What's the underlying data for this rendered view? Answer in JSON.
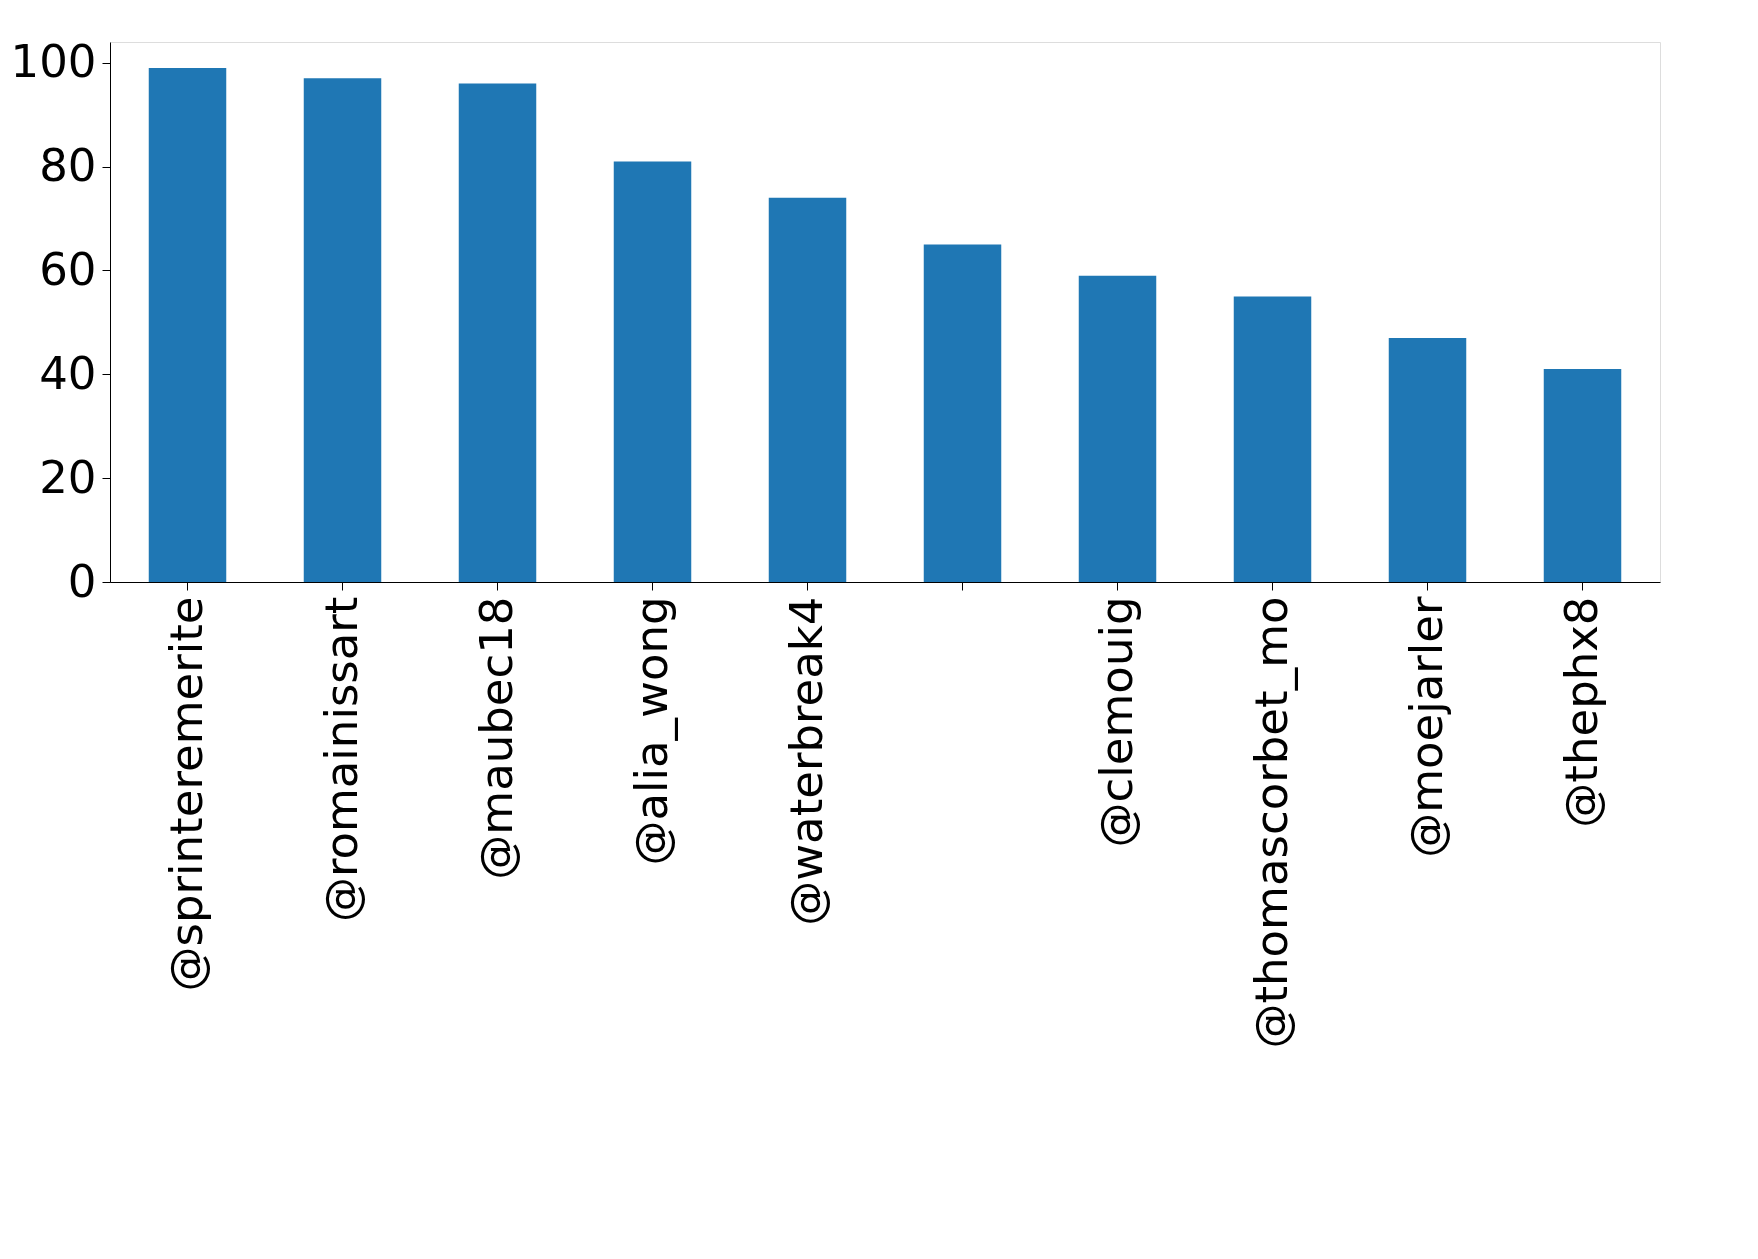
{
  "chart_data": {
    "type": "bar",
    "categories": [
      "@sprinteremerite",
      "@romainissart",
      "@maubec18",
      "@alia_wong",
      "@waterbreak4",
      null,
      "@clemouig",
      "@thomascorbet_mo",
      "@moejarler",
      "@thephx8"
    ],
    "values": [
      99,
      97,
      96,
      81,
      74,
      65,
      59,
      55,
      47,
      41
    ],
    "color": "#1f77b4",
    "ylim": [
      0,
      104
    ],
    "yticks": [
      0,
      20,
      40,
      60,
      80,
      100
    ],
    "grid": false
  }
}
